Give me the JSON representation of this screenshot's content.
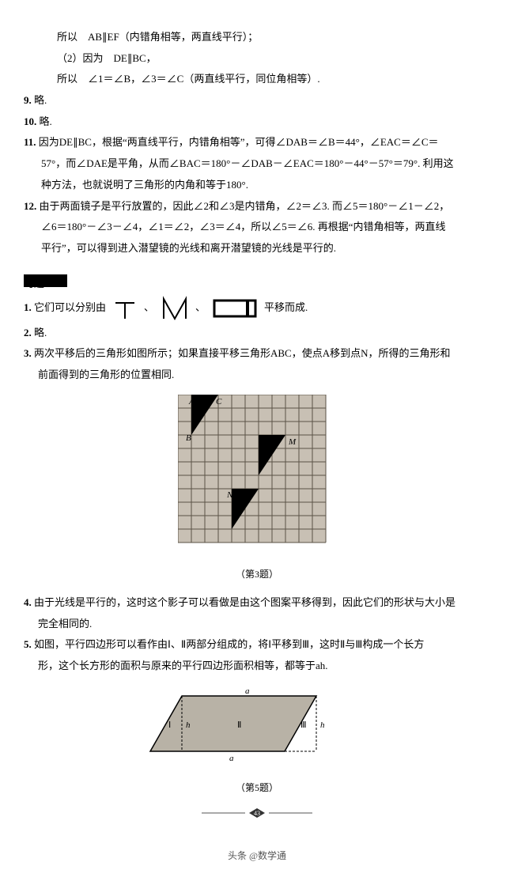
{
  "top": {
    "l1": "所以　AB∥EF（内错角相等，两直线平行）；",
    "l2": "（2）因为　DE∥BC，",
    "l3": "所以　∠1＝∠B，∠3＝∠C（两直线平行，同位角相等）."
  },
  "q9": {
    "num": "9.",
    "text": "略."
  },
  "q10": {
    "num": "10.",
    "text": "略."
  },
  "q11": {
    "num": "11.",
    "l1": "因为DE∥BC，根据“两直线平行，内错角相等”，可得∠DAB＝∠B＝44°，∠EAC＝∠C＝",
    "l2": "57°，而∠DAE是平角，从而∠BAC＝180°－∠DAB－∠EAC＝180°－44°－57°＝79°. 利用这",
    "l3": "种方法，也就说明了三角形的内角和等于180°."
  },
  "q12": {
    "num": "12.",
    "l1": "由于两面镜子是平行放置的，因此∠2和∠3是内错角，∠2＝∠3. 而∠5＝180°－∠1－∠2，",
    "l2": "∠6＝180°－∠3－∠4，∠1＝∠2，∠3＝∠4，所以∠5＝∠6. 再根据“内错角相等，两直线",
    "l3": "平行”，可以得到进入潜望镜的光线和离开潜望镜的光线是平行的."
  },
  "section": "习题5.4",
  "sq1": {
    "num": "1.",
    "a": "它们可以分别由",
    "b": "平移而成."
  },
  "sq2": {
    "num": "2.",
    "text": "略."
  },
  "sq3": {
    "num": "3.",
    "l1": "两次平移后的三角形如图所示；如果直接平移三角形ABC，使点A移到点N，所得的三角形和",
    "l2": "前面得到的三角形的位置相同."
  },
  "fig3": {
    "caption": "（第3题）",
    "grid": {
      "cols": 11,
      "rows": 11,
      "cell": 17,
      "fill": "#c8c0b4",
      "line": "#5a5246"
    },
    "labels": {
      "A": "A",
      "C": "C",
      "B": "B",
      "M": "M",
      "N": "N"
    },
    "triangles": [
      {
        "pts": [
          [
            1,
            0
          ],
          [
            3,
            0
          ],
          [
            1,
            3
          ]
        ]
      },
      {
        "pts": [
          [
            6,
            3
          ],
          [
            8,
            3
          ],
          [
            6,
            6
          ]
        ]
      },
      {
        "pts": [
          [
            4,
            7
          ],
          [
            6,
            7
          ],
          [
            4,
            10
          ]
        ]
      }
    ]
  },
  "sq4": {
    "num": "4.",
    "l1": "由于光线是平行的，这时这个影子可以看做是由这个图案平移得到，因此它们的形状与大小是",
    "l2": "完全相同的."
  },
  "sq5": {
    "num": "5.",
    "l1": "如图，平行四边形可以看作由Ⅰ、Ⅱ两部分组成的，将Ⅰ平移到Ⅲ，这时Ⅱ与Ⅲ构成一个长方",
    "l2": "形，这个长方形的面积与原来的平行四边形面积相等，都等于ah."
  },
  "fig5": {
    "caption": "（第5题）",
    "labels": {
      "a_top": "a",
      "a_bot": "a",
      "h_left": "h",
      "h_right": "h",
      "I": "Ⅰ",
      "II": "Ⅱ",
      "III": "Ⅲ"
    },
    "colors": {
      "fill": "#b8b2a6",
      "stroke": "#000"
    }
  },
  "footer": "头条 @数学通",
  "pagenum": "43"
}
